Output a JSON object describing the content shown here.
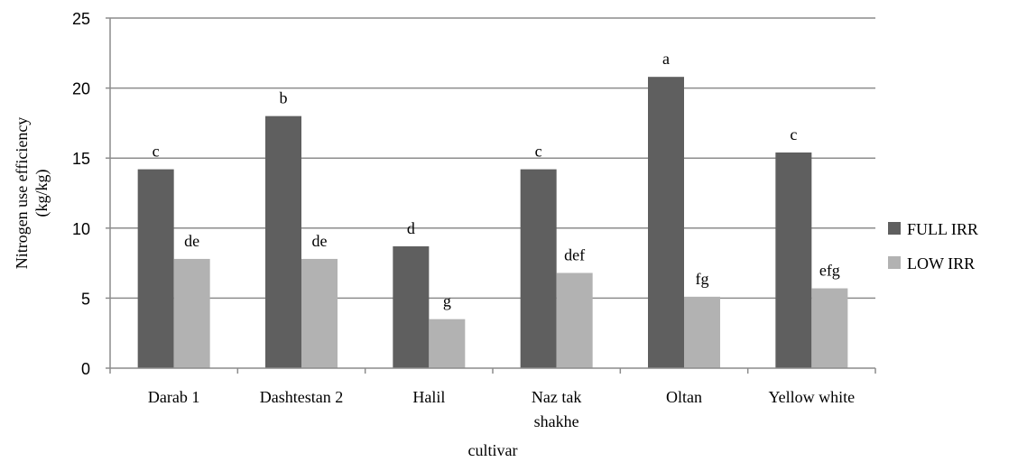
{
  "chart_data": {
    "type": "bar",
    "title": "",
    "xlabel": "cultivar",
    "ylabel_lines": [
      "Nitrogen use efficiency",
      "(kg/kg)"
    ],
    "ylim": [
      0,
      25
    ],
    "yticks": [
      0,
      5,
      10,
      15,
      20,
      25
    ],
    "grid": true,
    "legend_position": "right",
    "categories": [
      [
        "Darab 1"
      ],
      [
        "Dashtestan 2"
      ],
      [
        "Halil"
      ],
      [
        "Naz tak",
        "shakhe"
      ],
      [
        "Oltan"
      ],
      [
        "Yellow white"
      ]
    ],
    "series": [
      {
        "name": "FULL IRR",
        "color": "#5f5f5f",
        "values": [
          14.2,
          18.0,
          8.7,
          14.2,
          20.8,
          15.4
        ],
        "letters": [
          "c",
          "b",
          "d",
          "c",
          "a",
          "c"
        ]
      },
      {
        "name": "LOW IRR",
        "color": "#b2b2b2",
        "values": [
          7.8,
          7.8,
          3.5,
          6.8,
          5.1,
          5.7
        ],
        "letters": [
          "de",
          "de",
          "g",
          "def",
          "fg",
          "efg"
        ]
      }
    ]
  }
}
